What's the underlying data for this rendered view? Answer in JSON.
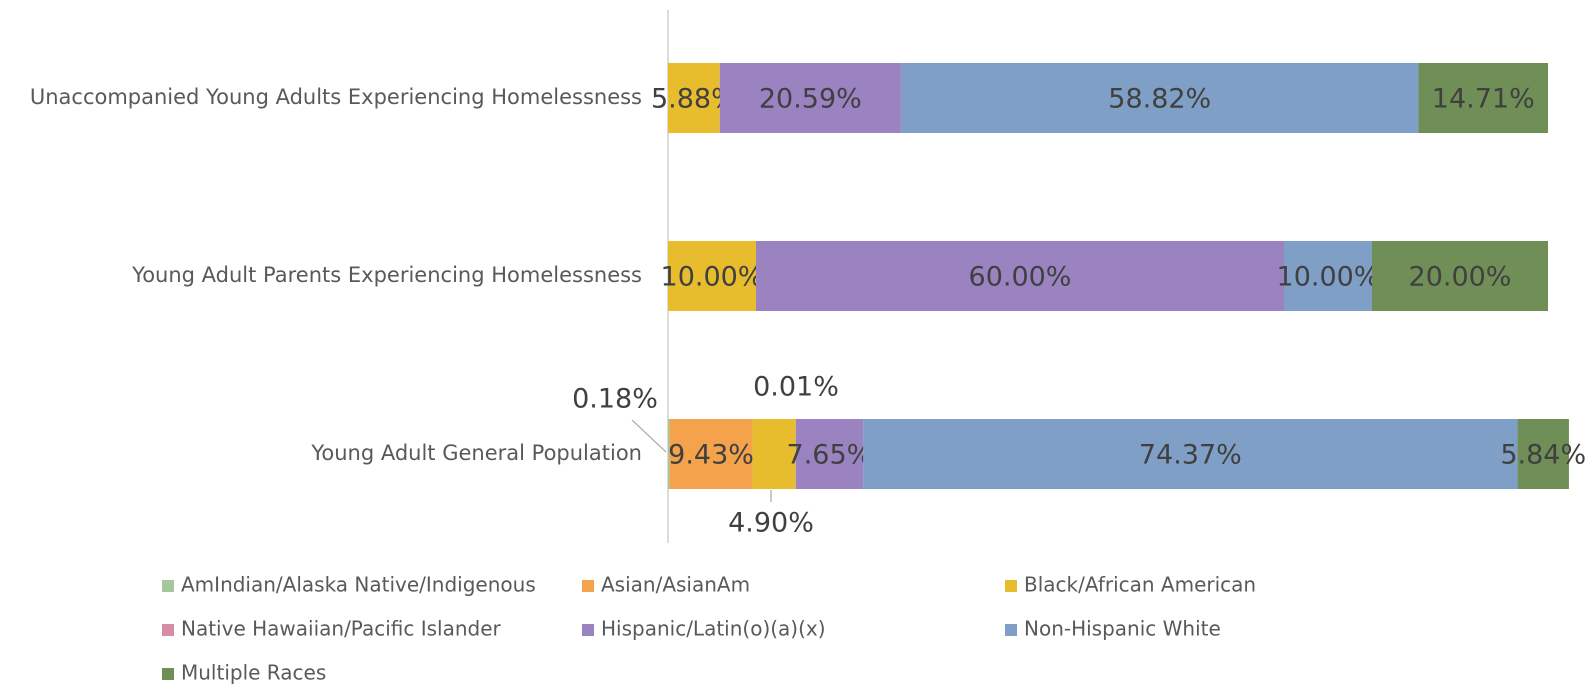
{
  "chart_data": {
    "type": "stacked-barh",
    "categories": [
      "Unaccompanied Young Adults Experiencing Homelessness",
      "Young Adult Parents Experiencing Homelessness",
      "Young Adult General Population"
    ],
    "xlim": [
      0,
      100
    ],
    "series": [
      {
        "name": "AmIndian/Alaska Native/Indigenous",
        "color": "#a6c79c",
        "values": [
          0,
          0,
          0.18
        ],
        "value_labels": [
          null,
          null,
          "0.18%"
        ]
      },
      {
        "name": "Asian/AsianAm",
        "color": "#f4a24b",
        "values": [
          0,
          0,
          9.43
        ],
        "value_labels": [
          null,
          null,
          "9.43%"
        ]
      },
      {
        "name": "Black/African American",
        "color": "#e8bd2d",
        "values": [
          5.88,
          10,
          4.9
        ],
        "value_labels": [
          "5.88%",
          "10.00%",
          "4.90%"
        ]
      },
      {
        "name": "Native Hawaiian/Pacific Islander",
        "color": "#d88ca6",
        "values": [
          0,
          0,
          0.01
        ],
        "value_labels": [
          null,
          null,
          "0.01%"
        ]
      },
      {
        "name": "Hispanic/Latin(o)(a)(x)",
        "color": "#9b83c1",
        "values": [
          20.59,
          60,
          7.65
        ],
        "value_labels": [
          "20.59%",
          "60.00%",
          "7.65%"
        ]
      },
      {
        "name": "Non-Hispanic White",
        "color": "#7f9fc6",
        "values": [
          58.82,
          10,
          74.37
        ],
        "value_labels": [
          "58.82%",
          "10.00%",
          "74.37%"
        ]
      },
      {
        "name": "Multiple Races",
        "color": "#6f8f57",
        "values": [
          14.71,
          20,
          5.84
        ],
        "value_labels": [
          "14.71%",
          "20.00%",
          "5.84%"
        ]
      }
    ]
  }
}
